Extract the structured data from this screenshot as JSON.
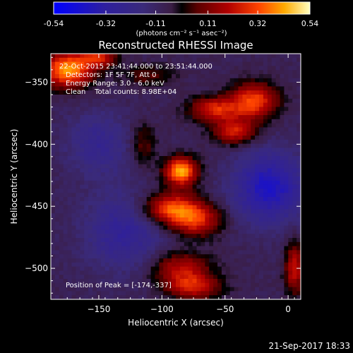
{
  "chart_data": {
    "type": "heatmap",
    "title": "Reconstructed RHESSI Image",
    "xlabel": "Heliocentric X (arcsec)",
    "ylabel": "Heliocentric Y (arcsec)",
    "xlim": [
      -188,
      10
    ],
    "ylim": [
      -525,
      -327
    ],
    "x_ticks": [
      -150,
      -100,
      -50,
      0
    ],
    "y_ticks": [
      -350,
      -400,
      -450,
      -500
    ],
    "colorbar": {
      "min": -0.54,
      "max": 0.54,
      "ticks": [
        -0.54,
        -0.32,
        -0.11,
        0.11,
        0.32,
        0.54
      ],
      "tick_labels": [
        "-0.54",
        "-0.32",
        "-0.11",
        "0.11",
        "0.32",
        "0.54"
      ],
      "label": "(photons cm⁻² s⁻¹ asec⁻²)"
    },
    "annotations": {
      "time_range": "22-Oct-2015 23:41:44.000 to 23:51:44.000",
      "detectors": "Detectors: 1F 5F 7F, Att 0",
      "energy": "Energy Range: 3.0 - 6.0 keV",
      "clean": "Clean    Total counts: 8.98E+04",
      "peak": "Position of Peak = [-174,-337]"
    },
    "peak_position": [
      -174,
      -337
    ],
    "sources": [
      {
        "x": -85,
        "y": -422,
        "sx": 9,
        "sy": 8,
        "amp": 0.52
      },
      {
        "x": -92,
        "y": -452,
        "sx": 16,
        "sy": 9,
        "amp": 0.42
      },
      {
        "x": -72,
        "y": -462,
        "sx": 14,
        "sy": 9,
        "amp": 0.3
      },
      {
        "x": -58,
        "y": -372,
        "sx": 14,
        "sy": 7,
        "amp": 0.34
      },
      {
        "x": -27,
        "y": -365,
        "sx": 13,
        "sy": 10,
        "amp": 0.4
      },
      {
        "x": -42,
        "y": -390,
        "sx": 12,
        "sy": 7,
        "amp": 0.32
      },
      {
        "x": -175,
        "y": -340,
        "sx": 14,
        "sy": 10,
        "amp": 0.5
      },
      {
        "x": -150,
        "y": -330,
        "sx": 10,
        "sy": 6,
        "amp": 0.3
      },
      {
        "x": -85,
        "y": -500,
        "sx": 16,
        "sy": 9,
        "amp": 0.28
      },
      {
        "x": -75,
        "y": -515,
        "sx": 15,
        "sy": 7,
        "amp": 0.3
      },
      {
        "x": -115,
        "y": -400,
        "sx": 7,
        "sy": 12,
        "amp": 0.16
      },
      {
        "x": 5,
        "y": -500,
        "sx": 5,
        "sy": 14,
        "amp": 0.32
      },
      {
        "x": -110,
        "y": -345,
        "sx": 15,
        "sy": 6,
        "amp": 0.14
      },
      {
        "x": -15,
        "y": -435,
        "sx": 20,
        "sy": 20,
        "amp": -0.32
      },
      {
        "x": -130,
        "y": -470,
        "sx": 22,
        "sy": 22,
        "amp": -0.2
      },
      {
        "x": -150,
        "y": -400,
        "sx": 18,
        "sy": 18,
        "amp": -0.16
      }
    ],
    "base_level": -0.08
  },
  "footer": {
    "timestamp": "21-Sep-2017 18:33"
  }
}
